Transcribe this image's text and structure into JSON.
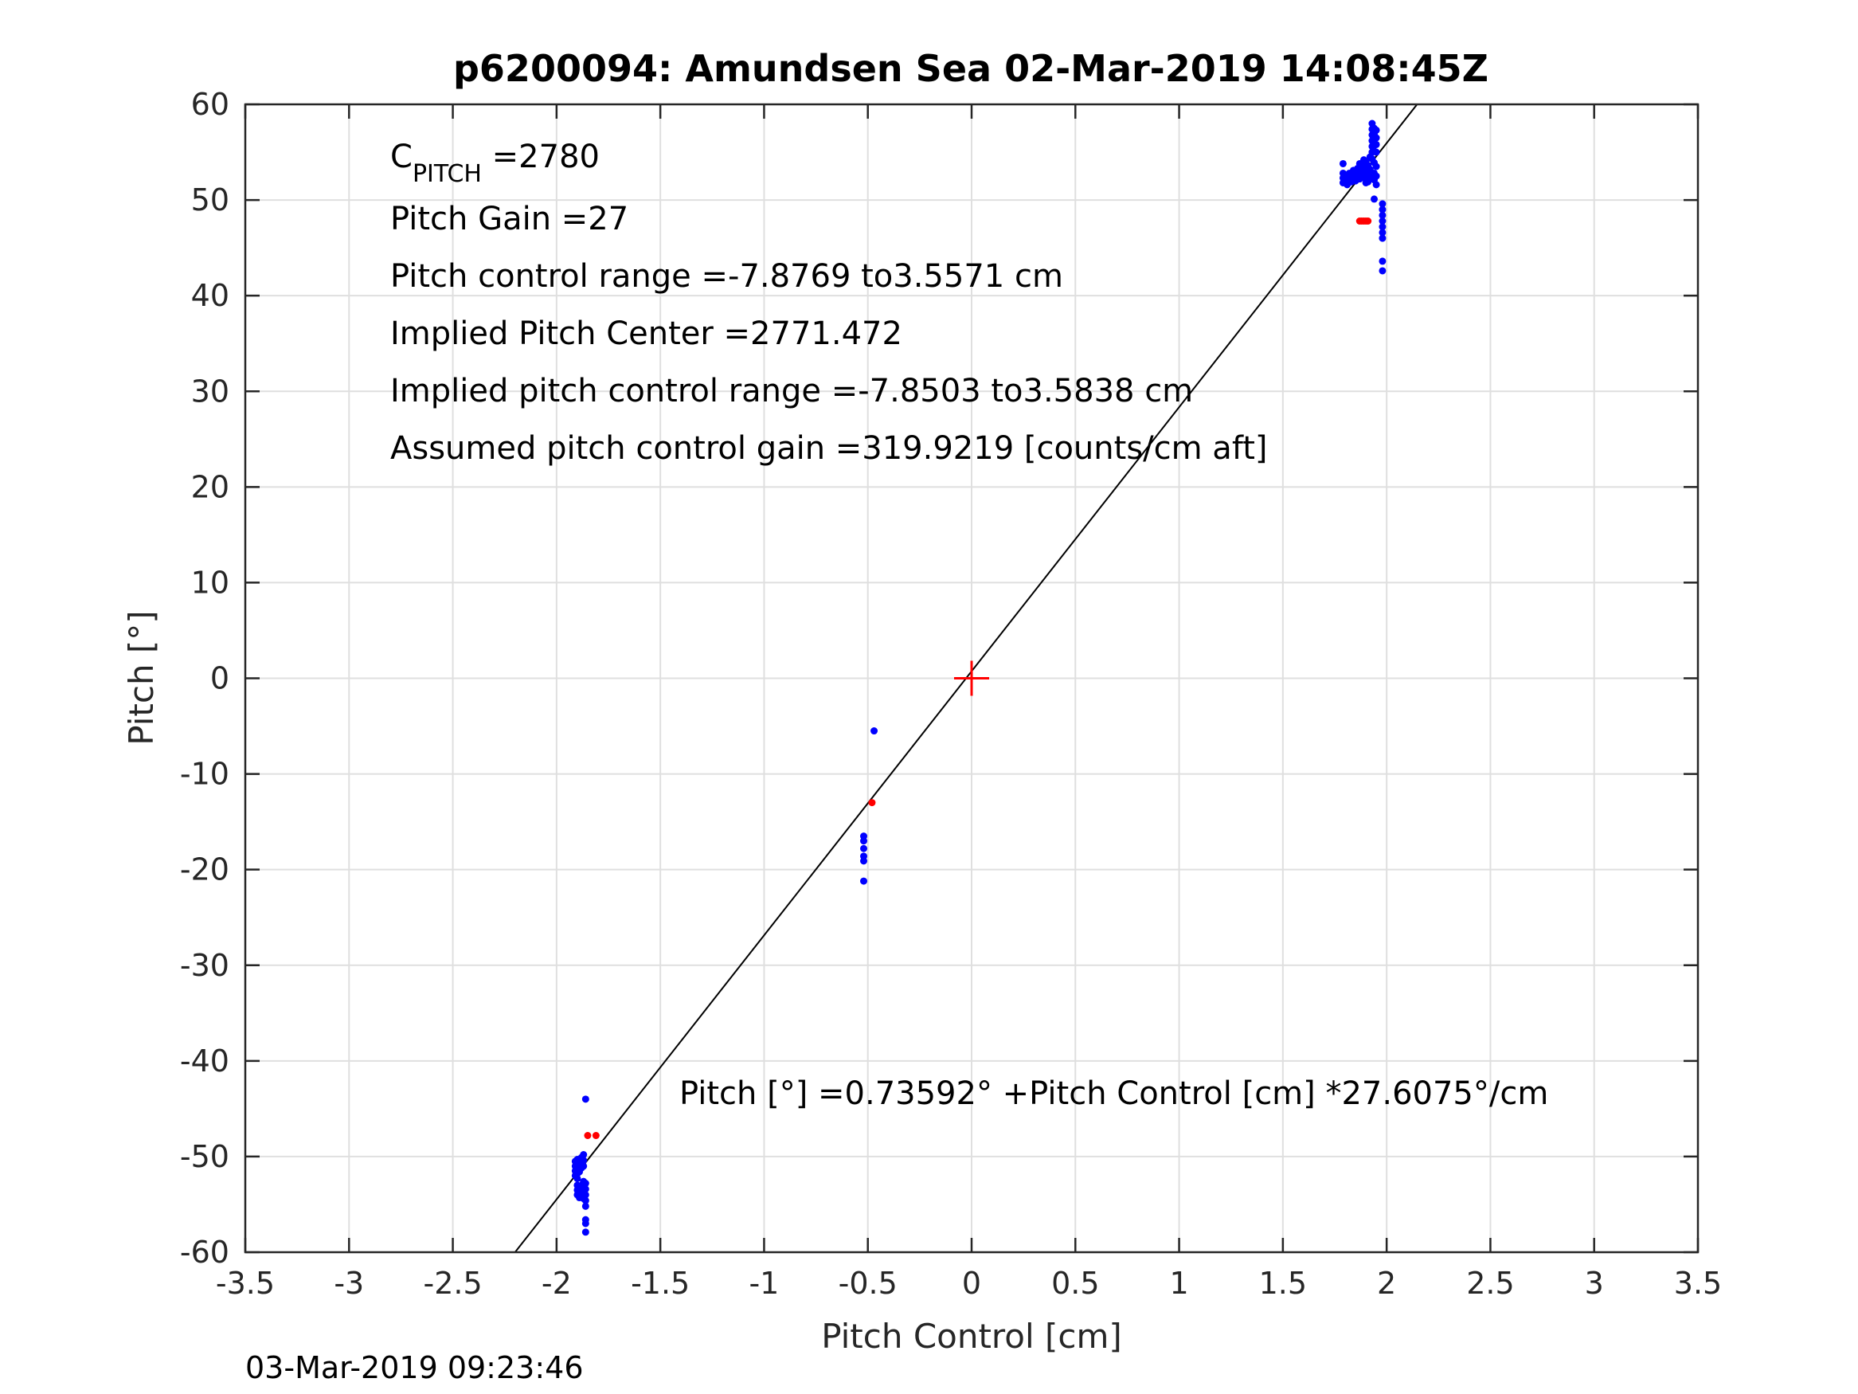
{
  "chart_data": {
    "type": "scatter",
    "title": "p6200094: Amundsen Sea 02-Mar-2019 14:08:45Z",
    "xlabel": "Pitch Control [cm]",
    "ylabel": "Pitch [°]",
    "xlim": [
      -3.5,
      3.5
    ],
    "ylim": [
      -60,
      60
    ],
    "xticks": [
      -3.5,
      -3,
      -2.5,
      -2,
      -1.5,
      -1,
      -0.5,
      0,
      0.5,
      1,
      1.5,
      2,
      2.5,
      3,
      3.5
    ],
    "yticks": [
      -60,
      -50,
      -40,
      -30,
      -20,
      -10,
      0,
      10,
      20,
      30,
      40,
      50,
      60
    ],
    "grid": true,
    "colors": {
      "blue": "#0000ff",
      "red": "#ff0000",
      "fit": "#000000"
    },
    "fit_line": {
      "intercept": 0.73592,
      "slope": 27.6075
    },
    "center_marker": {
      "x": 0,
      "y": 0,
      "color": "#ff0000"
    },
    "series": [
      {
        "color": "#0000ff",
        "points": [
          [
            -1.91,
            -50.5
          ],
          [
            -1.91,
            -51.0
          ],
          [
            -1.91,
            -51.5
          ],
          [
            -1.91,
            -52.0
          ],
          [
            -1.9,
            -50.3
          ],
          [
            -1.9,
            -50.8
          ],
          [
            -1.9,
            -51.3
          ],
          [
            -1.9,
            -51.8
          ],
          [
            -1.9,
            -52.3
          ],
          [
            -1.89,
            -50.6
          ],
          [
            -1.89,
            -51.1
          ],
          [
            -1.89,
            -51.6
          ],
          [
            -1.88,
            -50.1
          ],
          [
            -1.88,
            -50.7
          ],
          [
            -1.88,
            -51.2
          ],
          [
            -1.87,
            -49.8
          ],
          [
            -1.87,
            -50.4
          ],
          [
            -1.87,
            -51.0
          ],
          [
            -1.9,
            -53.0
          ],
          [
            -1.9,
            -53.5
          ],
          [
            -1.9,
            -54.0
          ],
          [
            -1.89,
            -53.3
          ],
          [
            -1.89,
            -53.8
          ],
          [
            -1.89,
            -54.3
          ],
          [
            -1.88,
            -53.0
          ],
          [
            -1.88,
            -53.6
          ],
          [
            -1.88,
            -54.2
          ],
          [
            -1.87,
            -52.6
          ],
          [
            -1.87,
            -53.2
          ],
          [
            -1.87,
            -53.8
          ],
          [
            -1.87,
            -54.4
          ],
          [
            -1.86,
            -52.8
          ],
          [
            -1.86,
            -53.4
          ],
          [
            -1.86,
            -54.0
          ],
          [
            -1.86,
            -54.6
          ],
          [
            -1.86,
            -55.2
          ],
          [
            -1.86,
            -56.6
          ],
          [
            -1.86,
            -57.0
          ],
          [
            -1.86,
            -57.9
          ],
          [
            -1.86,
            -44.0
          ],
          [
            -0.52,
            -16.5
          ],
          [
            -0.52,
            -17.0
          ],
          [
            -0.52,
            -17.8
          ],
          [
            -0.52,
            -18.6
          ],
          [
            -0.52,
            -19.1
          ],
          [
            -0.52,
            -21.2
          ],
          [
            -0.47,
            -5.5
          ],
          [
            1.79,
            53.8
          ],
          [
            1.79,
            52.8
          ],
          [
            1.79,
            52.3
          ],
          [
            1.79,
            51.8
          ],
          [
            1.8,
            52.6
          ],
          [
            1.81,
            52.2
          ],
          [
            1.81,
            51.6
          ],
          [
            1.82,
            52.8
          ],
          [
            1.83,
            52.4
          ],
          [
            1.83,
            51.9
          ],
          [
            1.84,
            53.1
          ],
          [
            1.85,
            52.6
          ],
          [
            1.85,
            52.0
          ],
          [
            1.86,
            53.3
          ],
          [
            1.86,
            52.7
          ],
          [
            1.87,
            53.8
          ],
          [
            1.87,
            52.2
          ],
          [
            1.88,
            53.4
          ],
          [
            1.88,
            52.9
          ],
          [
            1.89,
            54.2
          ],
          [
            1.89,
            53.5
          ],
          [
            1.89,
            52.4
          ],
          [
            1.9,
            54.0
          ],
          [
            1.9,
            53.0
          ],
          [
            1.9,
            52.2
          ],
          [
            1.9,
            51.8
          ],
          [
            1.91,
            53.6
          ],
          [
            1.91,
            52.6
          ],
          [
            1.91,
            51.9
          ],
          [
            1.92,
            54.5
          ],
          [
            1.92,
            53.2
          ],
          [
            1.92,
            52.4
          ],
          [
            1.93,
            58.0
          ],
          [
            1.93,
            57.4
          ],
          [
            1.93,
            56.8
          ],
          [
            1.93,
            56.2
          ],
          [
            1.93,
            55.6
          ],
          [
            1.93,
            55.0
          ],
          [
            1.93,
            54.3
          ],
          [
            1.94,
            57.5
          ],
          [
            1.94,
            56.9
          ],
          [
            1.94,
            56.3
          ],
          [
            1.94,
            55.7
          ],
          [
            1.94,
            55.1
          ],
          [
            1.94,
            53.9
          ],
          [
            1.94,
            52.8
          ],
          [
            1.94,
            52.1
          ],
          [
            1.95,
            57.3
          ],
          [
            1.95,
            56.5
          ],
          [
            1.95,
            55.8
          ],
          [
            1.95,
            55.0
          ],
          [
            1.95,
            53.5
          ],
          [
            1.95,
            52.5
          ],
          [
            1.95,
            51.6
          ],
          [
            1.94,
            50.1
          ],
          [
            1.98,
            49.6
          ],
          [
            1.98,
            49.0
          ],
          [
            1.98,
            48.4
          ],
          [
            1.98,
            47.8
          ],
          [
            1.98,
            47.2
          ],
          [
            1.98,
            46.6
          ],
          [
            1.98,
            46.0
          ],
          [
            1.98,
            43.6
          ],
          [
            1.98,
            42.6
          ]
        ]
      },
      {
        "color": "#ff0000",
        "points": [
          [
            -1.85,
            -47.8
          ],
          [
            -1.81,
            -47.8
          ],
          [
            -0.48,
            -13.0
          ],
          [
            1.87,
            47.8
          ],
          [
            1.88,
            47.8
          ],
          [
            1.89,
            47.8
          ],
          [
            1.9,
            47.8
          ],
          [
            1.91,
            47.8
          ]
        ]
      }
    ],
    "annotations": {
      "cpitch_base": "C",
      "cpitch_sub": "PITCH",
      "cpitch_value": " =2780",
      "pitch_gain": "Pitch Gain =27",
      "control_range": "Pitch control range =-7.8769 to3.5571 cm",
      "implied_center": "Implied Pitch Center =2771.472",
      "implied_range": "Implied pitch control range =-7.8503 to3.5838 cm",
      "assumed_gain": "Assumed pitch control gain =319.9219 [counts/cm aft]",
      "equation": "Pitch [°] =0.73592° +Pitch Control [cm] *27.6075°/cm"
    },
    "timestamp": "03-Mar-2019 09:23:46"
  }
}
